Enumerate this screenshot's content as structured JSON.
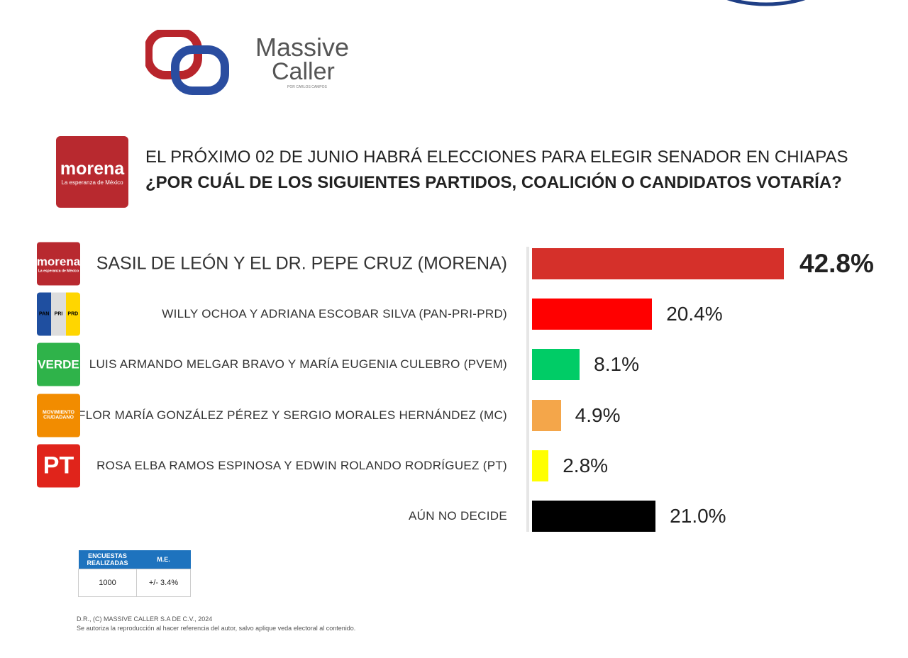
{
  "brand": {
    "name1": "Massive",
    "name2": "Caller",
    "tagline": "POR CARLOS CAMPOS"
  },
  "header": {
    "logo_text": "morena",
    "logo_subtext": "La esperanza de México",
    "line1": "EL PRÓXIMO 02 DE JUNIO HABRÁ ELECCIONES PARA ELEGIR SENADOR EN CHIAPAS",
    "line2": "¿POR CUÁL DE LOS SIGUIENTES PARTIDOS, COALICIÓN O CANDIDATOS VOTARÍA?"
  },
  "logos": [
    {
      "label": "morena",
      "sub": "La esperanza de México",
      "bg": "#b8292f"
    },
    {
      "parts": [
        "PAN",
        "PRI",
        "PRD"
      ],
      "bg": "#1f4fa0"
    },
    {
      "label": "VERDE",
      "bg": "#2fb34a"
    },
    {
      "label": "MOVIMIENTO CIUDADANO",
      "bg": "#f28c00"
    },
    {
      "label": "PT",
      "bg": "#e0241b"
    }
  ],
  "chart_data": {
    "type": "bar",
    "orientation": "horizontal",
    "categories": [
      "SASIL DE LEÓN Y EL DR. PEPE CRUZ (MORENA)",
      "WILLY OCHOA Y ADRIANA ESCOBAR SILVA (PAN-PRI-PRD)",
      "LUIS ARMANDO MELGAR BRAVO Y MARÍA EUGENIA CULEBRO (PVEM)",
      "FLOR MARÍA GONZÁLEZ PÉREZ Y SERGIO MORALES HERNÁNDEZ (MC)",
      "ROSA ELBA RAMOS ESPINOSA Y EDWIN ROLANDO RODRÍGUEZ (PT)",
      "AÚN NO DECIDE"
    ],
    "values": [
      42.8,
      20.4,
      8.1,
      4.9,
      2.8,
      21.0
    ],
    "value_labels": [
      "42.8%",
      "20.4%",
      "8.1%",
      "4.9%",
      "2.8%",
      "21.0%"
    ],
    "colors": [
      "#d5302a",
      "#ff0000",
      "#00cc66",
      "#f4a64a",
      "#ffff00",
      "#000000"
    ]
  },
  "table": {
    "headers": [
      "ENCUESTAS REALIZADAS",
      "M.E."
    ],
    "rows": [
      [
        "1000",
        "+/- 3.4%"
      ]
    ]
  },
  "footer": [
    "D.R., (C) MASSIVE CALLER S.A DE C.V., 2024",
    "Se autoriza la reproducción al hacer referencia del autor, salvo aplique veda electoral al contenido."
  ]
}
